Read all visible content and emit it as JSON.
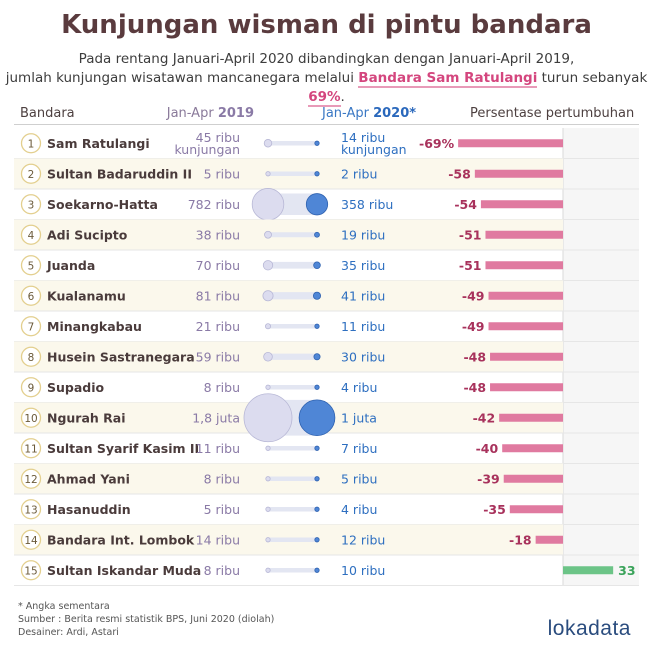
{
  "title": "Kunjungan wisman di pintu bandara",
  "subtitle": {
    "line1": "Pada rentang Januari-April 2020 dibandingkan dengan Januari-April 2019,",
    "line2_pre": "jumlah kunjungan wisatawan mancanegara melalui ",
    "line2_name": "Bandara Sam Ratulangi",
    "line2_mid": " turun sebanyak ",
    "line2_pct": "69%",
    "line2_post": "."
  },
  "headers": {
    "bandara": "Bandara",
    "y2019_pre": "Jan-Apr ",
    "y2019_year": "2019",
    "y2020_pre": "Jan-Apr ",
    "y2020_year": "2020*",
    "growth": "Persentase pertumbuhan"
  },
  "chart_data": {
    "type": "table",
    "columns": [
      "Bandara",
      "Jan-Apr 2019",
      "Jan-Apr 2020*",
      "Persentase pertumbuhan"
    ],
    "rows": [
      {
        "rank": "1",
        "name": "Sam Ratulangi",
        "v2019": 45000,
        "v2020": 14000,
        "label2019": [
          "45 ribu",
          "kunjungan"
        ],
        "label2020": [
          "14 ribu",
          "kunjungan"
        ],
        "growth": -69,
        "growth_label": "-69%"
      },
      {
        "rank": "2",
        "name": "Sultan Badaruddin II",
        "v2019": 5000,
        "v2020": 2000,
        "label2019": [
          "5 ribu"
        ],
        "label2020": [
          "2 ribu"
        ],
        "growth": -58,
        "growth_label": "-58"
      },
      {
        "rank": "3",
        "name": "Soekarno-Hatta",
        "v2019": 782000,
        "v2020": 358000,
        "label2019": [
          "782 ribu"
        ],
        "label2020": [
          "358 ribu"
        ],
        "growth": -54,
        "growth_label": "-54"
      },
      {
        "rank": "4",
        "name": "Adi Sucipto",
        "v2019": 38000,
        "v2020": 19000,
        "label2019": [
          "38 ribu"
        ],
        "label2020": [
          "19 ribu"
        ],
        "growth": -51,
        "growth_label": "-51"
      },
      {
        "rank": "5",
        "name": "Juanda",
        "v2019": 70000,
        "v2020": 35000,
        "label2019": [
          "70 ribu"
        ],
        "label2020": [
          "35 ribu"
        ],
        "growth": -51,
        "growth_label": "-51"
      },
      {
        "rank": "6",
        "name": "Kualanamu",
        "v2019": 81000,
        "v2020": 41000,
        "label2019": [
          "81 ribu"
        ],
        "label2020": [
          "41 ribu"
        ],
        "growth": -49,
        "growth_label": "-49"
      },
      {
        "rank": "7",
        "name": "Minangkabau",
        "v2019": 21000,
        "v2020": 11000,
        "label2019": [
          "21 ribu"
        ],
        "label2020": [
          "11 ribu"
        ],
        "growth": -49,
        "growth_label": "-49"
      },
      {
        "rank": "8",
        "name": "Husein Sastranegara",
        "v2019": 59000,
        "v2020": 30000,
        "label2019": [
          "59 ribu"
        ],
        "label2020": [
          "30 ribu"
        ],
        "growth": -48,
        "growth_label": "-48"
      },
      {
        "rank": "9",
        "name": "Supadio",
        "v2019": 8000,
        "v2020": 4000,
        "label2019": [
          "8 ribu"
        ],
        "label2020": [
          "4 ribu"
        ],
        "growth": -48,
        "growth_label": "-48"
      },
      {
        "rank": "10",
        "name": "Ngurah Rai",
        "v2019": 1800000,
        "v2020": 1000000,
        "label2019": [
          "1,8 juta"
        ],
        "label2020": [
          "1 juta"
        ],
        "growth": -42,
        "growth_label": "-42"
      },
      {
        "rank": "11",
        "name": "Sultan Syarif Kasim II",
        "v2019": 11000,
        "v2020": 7000,
        "label2019": [
          "11 ribu"
        ],
        "label2020": [
          "7 ribu"
        ],
        "growth": -40,
        "growth_label": "-40"
      },
      {
        "rank": "12",
        "name": "Ahmad Yani",
        "v2019": 8000,
        "v2020": 5000,
        "label2019": [
          "8 ribu"
        ],
        "label2020": [
          "5 ribu"
        ],
        "growth": -39,
        "growth_label": "-39"
      },
      {
        "rank": "13",
        "name": "Hasanuddin",
        "v2019": 5000,
        "v2020": 4000,
        "label2019": [
          "5 ribu"
        ],
        "label2020": [
          "4 ribu"
        ],
        "growth": -35,
        "growth_label": "-35"
      },
      {
        "rank": "14",
        "name": "Bandara Int. Lombok",
        "v2019": 14000,
        "v2020": 12000,
        "label2019": [
          "14 ribu"
        ],
        "label2020": [
          "12 ribu"
        ],
        "growth": -18,
        "growth_label": "-18"
      },
      {
        "rank": "15",
        "name": "Sultan Iskandar Muda",
        "v2019": 8000,
        "v2020": 10000,
        "label2019": [
          "8 ribu"
        ],
        "label2020": [
          "10 ribu"
        ],
        "growth": 33,
        "growth_label": "33"
      }
    ],
    "growth_range": [
      -80,
      40
    ],
    "colors": {
      "circle2019": "#dcdcef",
      "circle2020": "#4f86d6",
      "negative": "#e07aa0",
      "positive": "#6cc487",
      "value2019": "#8a7aa6",
      "value2020": "#2e6fc0",
      "growth_neg_text": "#a8325c",
      "growth_pos_text": "#3aa35a",
      "row_alt": "#fbf8ec"
    }
  },
  "footer": {
    "note": "* Angka sementara",
    "source": "Sumber : Berita resmi statistik BPS, Juni 2020 (diolah)",
    "designer": "Desainer: Ardi, Astari"
  },
  "logo": "lokadata"
}
